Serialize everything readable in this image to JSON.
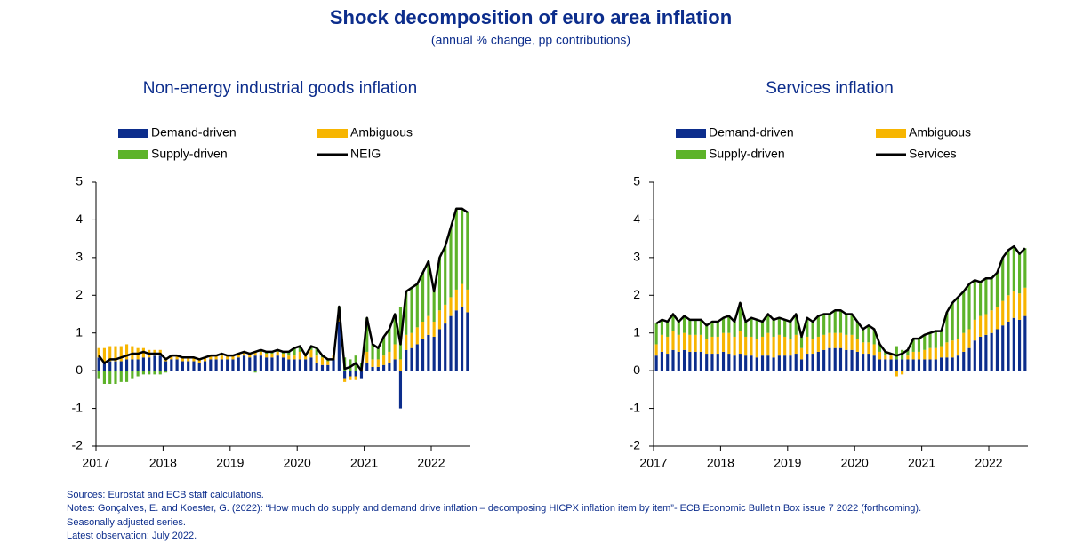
{
  "title": "Shock decomposition of euro area inflation",
  "subtitle": "(annual % change, pp contributions)",
  "chart_data": [
    {
      "type": "bar",
      "stacked": true,
      "title": "Non-energy industrial goods inflation",
      "categories": [
        "2017",
        null,
        null,
        null,
        null,
        null,
        null,
        null,
        null,
        null,
        null,
        null,
        "2018",
        null,
        null,
        null,
        null,
        null,
        null,
        null,
        null,
        null,
        null,
        null,
        "2019",
        null,
        null,
        null,
        null,
        null,
        null,
        null,
        null,
        null,
        null,
        null,
        "2020",
        null,
        null,
        null,
        null,
        null,
        null,
        null,
        null,
        null,
        null,
        null,
        "2021",
        null,
        null,
        null,
        null,
        null,
        null,
        null,
        null,
        null,
        null,
        null,
        "2022",
        null,
        null,
        null,
        null,
        null,
        null
      ],
      "ylim": [
        -2,
        5
      ],
      "yticks": [
        -2,
        -1,
        0,
        1,
        2,
        3,
        4,
        5
      ],
      "series": [
        {
          "name": "Demand-driven",
          "type": "bar",
          "color": "#0c2d8c",
          "values": [
            0.35,
            0.2,
            0.25,
            0.25,
            0.25,
            0.3,
            0.3,
            0.3,
            0.35,
            0.35,
            0.4,
            0.4,
            0.25,
            0.3,
            0.3,
            0.25,
            0.25,
            0.25,
            0.2,
            0.25,
            0.3,
            0.3,
            0.3,
            0.3,
            0.3,
            0.35,
            0.4,
            0.35,
            0.4,
            0.4,
            0.35,
            0.35,
            0.4,
            0.35,
            0.3,
            0.3,
            0.3,
            0.3,
            0.35,
            0.2,
            0.15,
            0.15,
            0.3,
            1.3,
            -0.2,
            -0.15,
            -0.15,
            -0.2,
            0.2,
            0.1,
            0.1,
            0.15,
            0.2,
            0.3,
            -1.0,
            0.55,
            0.6,
            0.7,
            0.85,
            0.95,
            0.9,
            1.1,
            1.25,
            1.45,
            1.6,
            1.7,
            1.55
          ]
        },
        {
          "name": "Ambiguous",
          "type": "bar",
          "color": "#f7b500",
          "values": [
            0.25,
            0.4,
            0.4,
            0.4,
            0.4,
            0.4,
            0.35,
            0.3,
            0.25,
            0.2,
            0.15,
            0.15,
            0.1,
            0.1,
            0.1,
            0.1,
            0.1,
            0.1,
            0.1,
            0.1,
            0.1,
            0.1,
            0.1,
            0.1,
            0.1,
            0.1,
            0.1,
            0.1,
            0.1,
            0.1,
            0.1,
            0.1,
            0.1,
            0.1,
            0.1,
            0.1,
            0.2,
            0.1,
            0.2,
            0.2,
            0.2,
            0.1,
            0.1,
            0.2,
            -0.1,
            -0.1,
            -0.1,
            0.05,
            0.3,
            0.2,
            0.2,
            0.25,
            0.3,
            0.4,
            0.3,
            0.4,
            0.4,
            0.45,
            0.45,
            0.5,
            0.4,
            0.5,
            0.5,
            0.5,
            0.55,
            0.6,
            0.6
          ]
        },
        {
          "name": "Supply-driven",
          "type": "bar",
          "color": "#5db329",
          "values": [
            -0.2,
            -0.35,
            -0.35,
            -0.35,
            -0.3,
            -0.3,
            -0.2,
            -0.15,
            -0.1,
            -0.1,
            -0.1,
            -0.1,
            -0.05,
            0,
            0,
            0,
            0,
            0,
            0,
            0,
            0,
            0,
            0.05,
            0,
            0,
            0,
            0,
            0,
            -0.05,
            0.05,
            0.05,
            0.05,
            0.05,
            0.05,
            0.1,
            0.2,
            0.15,
            0,
            0.1,
            0.2,
            0.05,
            0.05,
            0,
            0.2,
            0.35,
            0.3,
            0.4,
            0.15,
            0.9,
            0.4,
            0.3,
            0.5,
            0.6,
            0.8,
            1.4,
            1.15,
            1.2,
            1.15,
            1.3,
            1.45,
            0.8,
            1.4,
            1.55,
            1.85,
            2.15,
            2.0,
            2.05
          ]
        },
        {
          "name": "NEIG",
          "type": "line",
          "color": "#000000",
          "values": [
            0.4,
            0.2,
            0.3,
            0.3,
            0.35,
            0.4,
            0.45,
            0.45,
            0.5,
            0.45,
            0.45,
            0.45,
            0.3,
            0.4,
            0.4,
            0.35,
            0.35,
            0.35,
            0.3,
            0.35,
            0.4,
            0.4,
            0.45,
            0.4,
            0.4,
            0.45,
            0.5,
            0.45,
            0.5,
            0.55,
            0.5,
            0.5,
            0.55,
            0.5,
            0.5,
            0.6,
            0.65,
            0.4,
            0.65,
            0.6,
            0.4,
            0.3,
            0.3,
            1.7,
            0.05,
            0.1,
            0.2,
            0.0,
            1.4,
            0.7,
            0.6,
            0.9,
            1.1,
            1.5,
            0.7,
            2.1,
            2.2,
            2.3,
            2.6,
            2.9,
            2.1,
            3.0,
            3.3,
            3.8,
            4.3,
            4.3,
            4.2
          ]
        }
      ]
    },
    {
      "type": "bar",
      "stacked": true,
      "title": "Services inflation",
      "categories": [
        "2017",
        null,
        null,
        null,
        null,
        null,
        null,
        null,
        null,
        null,
        null,
        null,
        "2018",
        null,
        null,
        null,
        null,
        null,
        null,
        null,
        null,
        null,
        null,
        null,
        "2019",
        null,
        null,
        null,
        null,
        null,
        null,
        null,
        null,
        null,
        null,
        null,
        "2020",
        null,
        null,
        null,
        null,
        null,
        null,
        null,
        null,
        null,
        null,
        null,
        "2021",
        null,
        null,
        null,
        null,
        null,
        null,
        null,
        null,
        null,
        null,
        null,
        "2022",
        null,
        null,
        null,
        null,
        null,
        null
      ],
      "ylim": [
        -2,
        5
      ],
      "yticks": [
        -2,
        -1,
        0,
        1,
        2,
        3,
        4,
        5
      ],
      "series": [
        {
          "name": "Demand-driven",
          "type": "bar",
          "color": "#0c2d8c",
          "values": [
            0.4,
            0.5,
            0.45,
            0.55,
            0.5,
            0.55,
            0.5,
            0.5,
            0.5,
            0.45,
            0.45,
            0.45,
            0.5,
            0.45,
            0.4,
            0.45,
            0.4,
            0.4,
            0.35,
            0.4,
            0.4,
            0.35,
            0.4,
            0.4,
            0.4,
            0.45,
            0.3,
            0.45,
            0.45,
            0.5,
            0.55,
            0.6,
            0.6,
            0.6,
            0.55,
            0.55,
            0.5,
            0.45,
            0.45,
            0.4,
            0.3,
            0.3,
            0.3,
            0.3,
            0.3,
            0.3,
            0.3,
            0.3,
            0.3,
            0.3,
            0.3,
            0.35,
            0.35,
            0.35,
            0.4,
            0.5,
            0.6,
            0.8,
            0.9,
            0.95,
            1.0,
            1.1,
            1.2,
            1.3,
            1.4,
            1.35,
            1.45
          ]
        },
        {
          "name": "Ambiguous",
          "type": "bar",
          "color": "#f7b500",
          "values": [
            0.3,
            0.45,
            0.45,
            0.5,
            0.45,
            0.45,
            0.45,
            0.45,
            0.45,
            0.4,
            0.45,
            0.45,
            0.5,
            0.55,
            0.5,
            0.6,
            0.5,
            0.5,
            0.5,
            0.5,
            0.6,
            0.55,
            0.55,
            0.5,
            0.45,
            0.5,
            0.3,
            0.45,
            0.4,
            0.4,
            0.4,
            0.4,
            0.4,
            0.4,
            0.4,
            0.4,
            0.35,
            0.3,
            0.3,
            0.3,
            0.2,
            0.1,
            0.1,
            -0.15,
            -0.1,
            0.1,
            0.2,
            0.2,
            0.25,
            0.3,
            0.3,
            0.3,
            0.4,
            0.45,
            0.45,
            0.5,
            0.5,
            0.55,
            0.55,
            0.55,
            0.6,
            0.6,
            0.65,
            0.7,
            0.7,
            0.7,
            0.75
          ]
        },
        {
          "name": "Supply-driven",
          "type": "bar",
          "color": "#5db329",
          "values": [
            0.55,
            0.4,
            0.4,
            0.45,
            0.35,
            0.45,
            0.4,
            0.4,
            0.4,
            0.35,
            0.4,
            0.4,
            0.4,
            0.45,
            0.4,
            0.75,
            0.4,
            0.5,
            0.5,
            0.4,
            0.5,
            0.45,
            0.45,
            0.45,
            0.45,
            0.55,
            0.3,
            0.5,
            0.45,
            0.55,
            0.55,
            0.5,
            0.6,
            0.6,
            0.55,
            0.55,
            0.45,
            0.35,
            0.45,
            0.4,
            0.2,
            0.1,
            0.05,
            0.35,
            0.25,
            0.15,
            0.35,
            0.35,
            0.4,
            0.4,
            0.45,
            0.4,
            0.8,
            1.0,
            1.1,
            1.1,
            1.2,
            1.05,
            0.9,
            0.95,
            0.85,
            0.9,
            1.15,
            1.2,
            1.2,
            1.05,
            1.05
          ]
        },
        {
          "name": "Services",
          "type": "line",
          "color": "#000000",
          "values": [
            1.25,
            1.35,
            1.3,
            1.5,
            1.3,
            1.45,
            1.35,
            1.35,
            1.35,
            1.2,
            1.3,
            1.3,
            1.4,
            1.45,
            1.3,
            1.8,
            1.3,
            1.4,
            1.35,
            1.3,
            1.5,
            1.35,
            1.4,
            1.35,
            1.3,
            1.5,
            0.9,
            1.4,
            1.3,
            1.45,
            1.5,
            1.5,
            1.6,
            1.6,
            1.5,
            1.5,
            1.3,
            1.1,
            1.2,
            1.1,
            0.7,
            0.5,
            0.45,
            0.4,
            0.45,
            0.55,
            0.85,
            0.85,
            0.95,
            1.0,
            1.05,
            1.05,
            1.55,
            1.8,
            1.95,
            2.1,
            2.3,
            2.4,
            2.35,
            2.45,
            2.45,
            2.6,
            3.0,
            3.2,
            3.3,
            3.1,
            3.25
          ]
        }
      ]
    }
  ],
  "notes": [
    "Sources: Eurostat and ECB staff calculations.",
    "Notes: Gonçalves, E. and Koester, G. (2022): “How much do supply and demand drive inflation – decomposing HICPX inflation item by item”- ECB Economic Bulletin Box issue 7 2022 (forthcoming).",
    "Seasonally adjusted series.",
    "Latest observation: July 2022."
  ]
}
